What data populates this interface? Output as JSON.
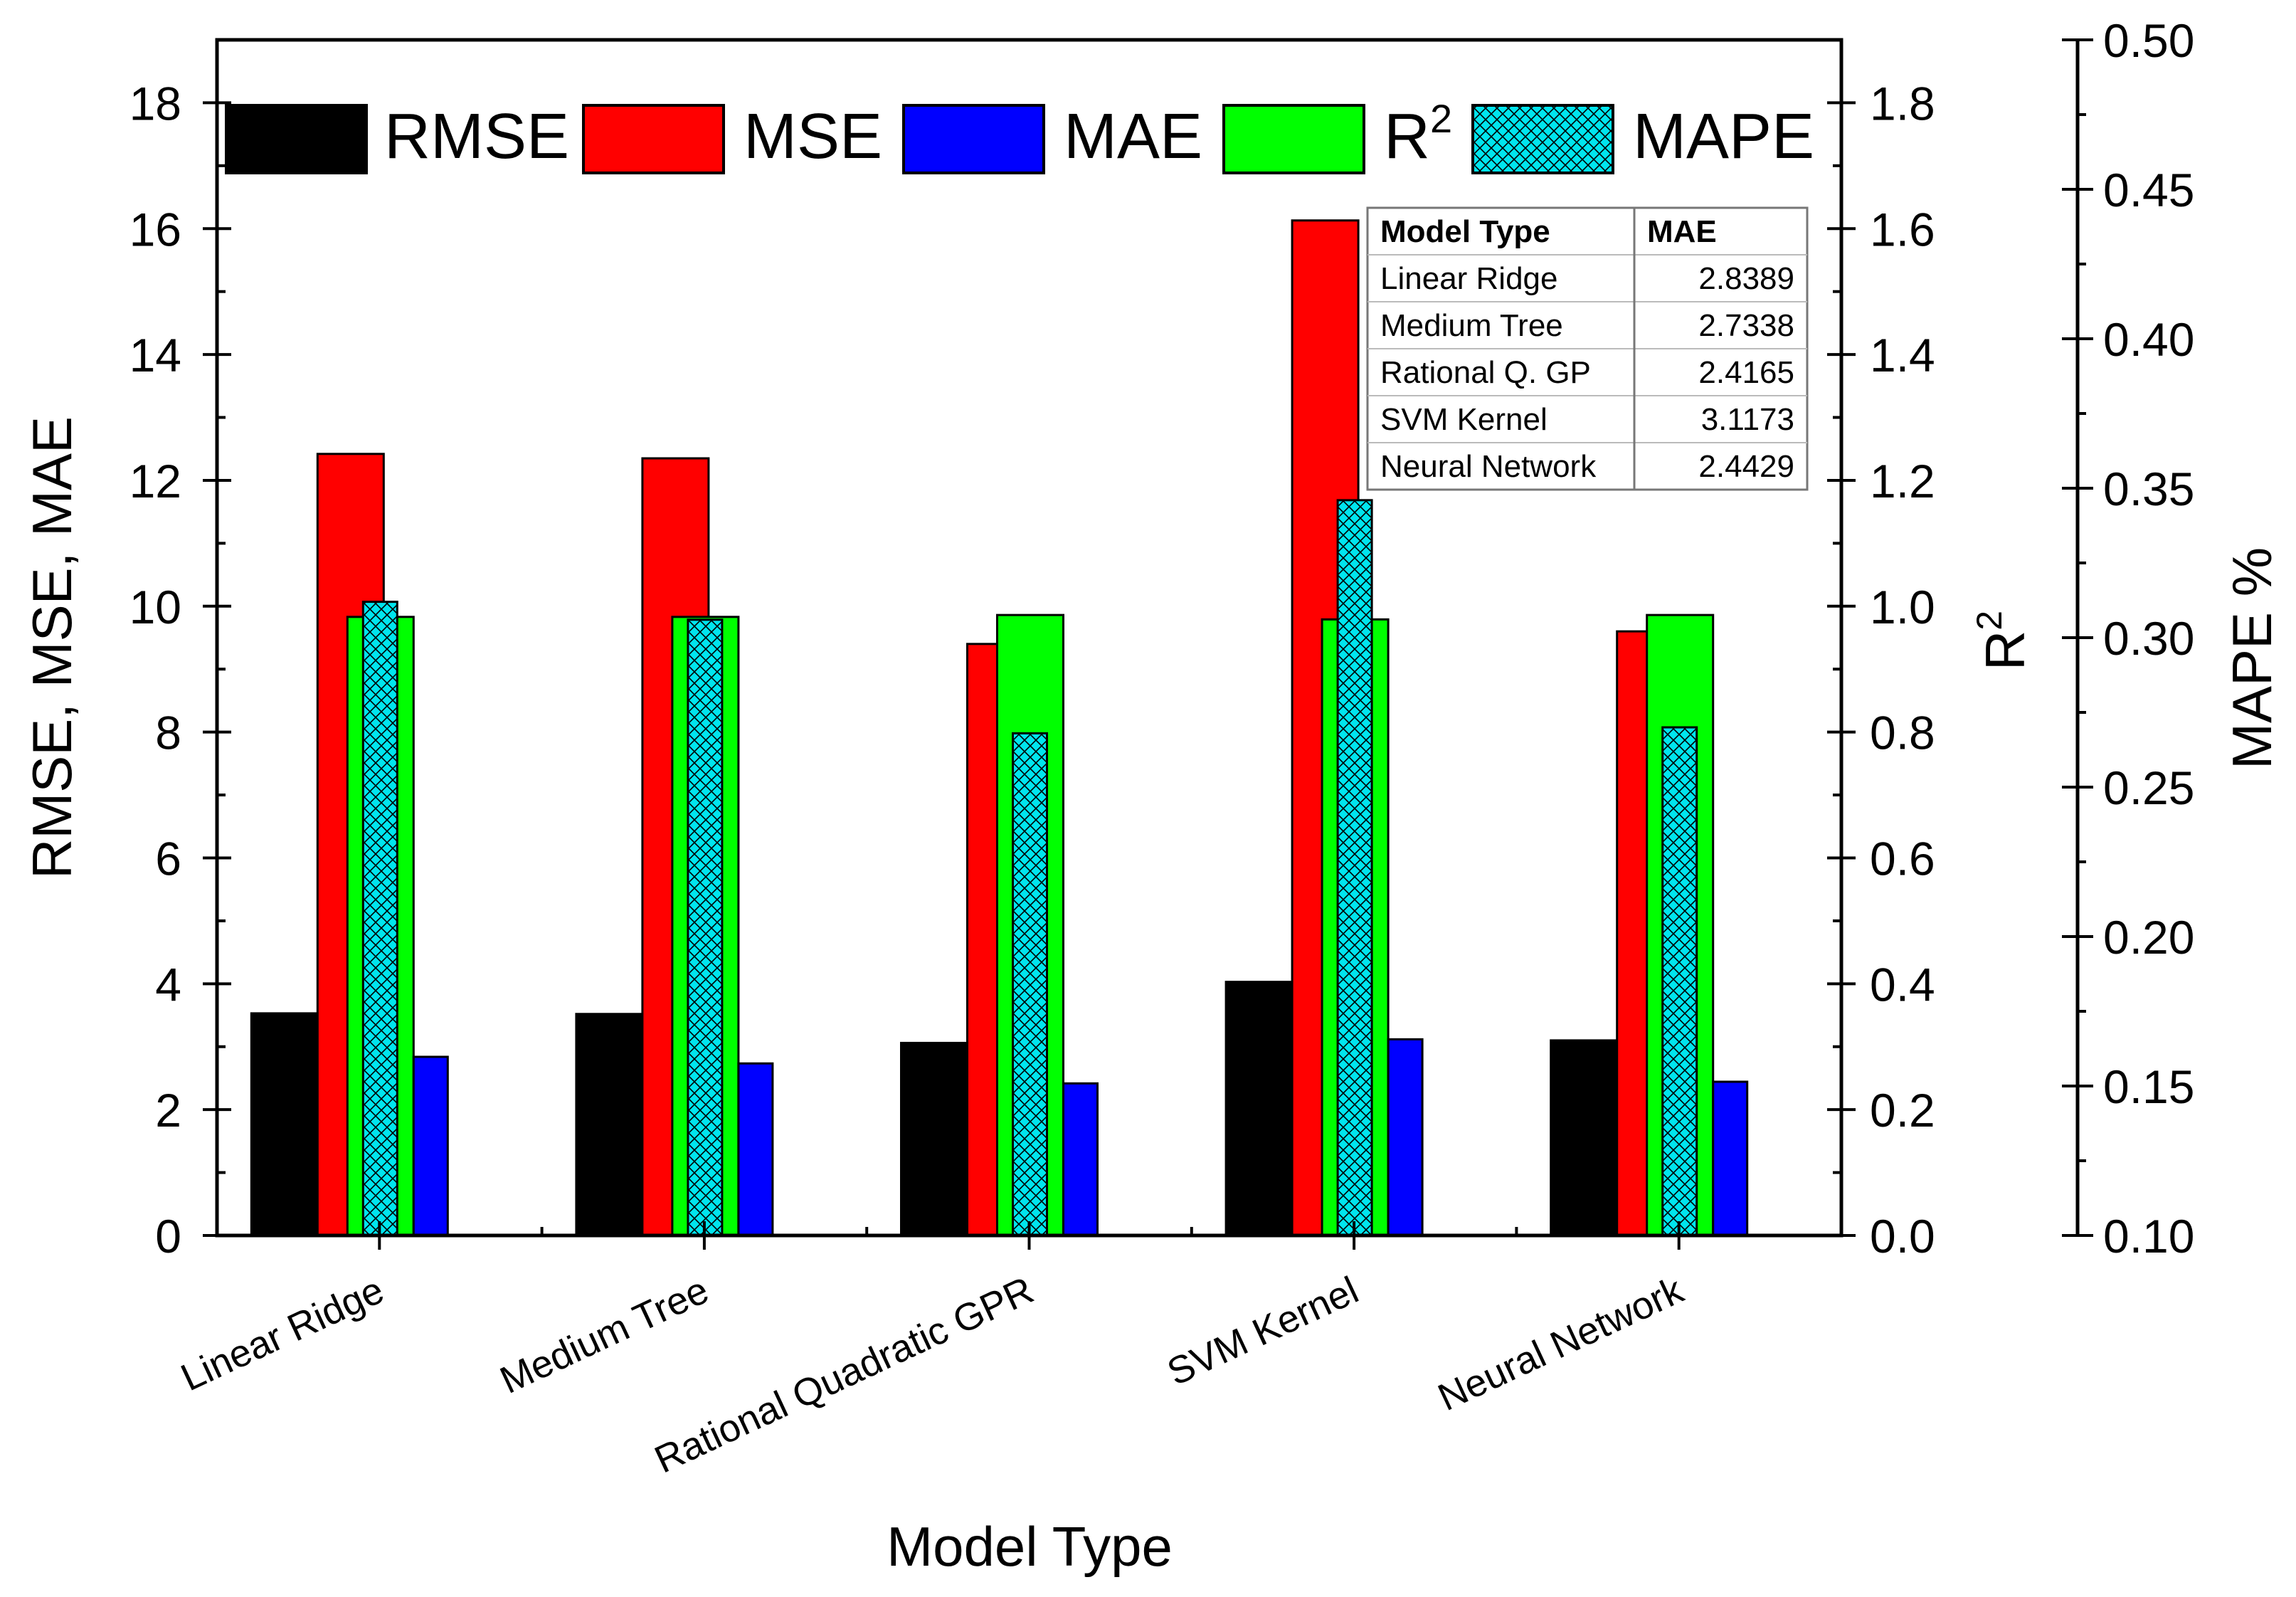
{
  "chart_data": {
    "type": "bar",
    "categories": [
      "Linear Ridge",
      "Medium Tree",
      "Rational Quadratic GPR",
      "SVM Kernel",
      "Neural Network"
    ],
    "series": [
      {
        "name": "RMSE",
        "axis": "left",
        "color": "#000000",
        "values": [
          3.53,
          3.52,
          3.06,
          4.03,
          3.1
        ]
      },
      {
        "name": "MSE",
        "axis": "left",
        "color": "#ff0000",
        "values": [
          12.42,
          12.35,
          9.4,
          16.13,
          9.6
        ]
      },
      {
        "name": "R2",
        "axis": "r2",
        "color": "#00ff00",
        "values": [
          0.983,
          0.983,
          0.986,
          0.979,
          0.986
        ]
      },
      {
        "name": "MAPE",
        "axis": "mape",
        "color": "#00e5ee",
        "hatch": true,
        "values": [
          0.312,
          0.306,
          0.268,
          0.346,
          0.27
        ]
      },
      {
        "name": "MAE",
        "axis": "left",
        "color": "#0000ff",
        "values": [
          2.8389,
          2.7338,
          2.4165,
          3.1173,
          2.4429
        ]
      }
    ],
    "legend": [
      {
        "label": "RMSE",
        "sup": "",
        "color": "#000000",
        "hatch": false
      },
      {
        "label": "MSE",
        "sup": "",
        "color": "#ff0000",
        "hatch": false
      },
      {
        "label": "MAE",
        "sup": "",
        "color": "#0000ff",
        "hatch": false
      },
      {
        "label": "R",
        "sup": "2",
        "color": "#00ff00",
        "hatch": false
      },
      {
        "label": "MAPE",
        "sup": "",
        "color": "#00e5ee",
        "hatch": true
      }
    ],
    "legend_position": "top",
    "xlabel": "Model Type",
    "ylabel_left": "RMSE, MSE, MAE",
    "ylabel_r2": "R",
    "ylabel_r2_sup": "2",
    "ylabel_mape": "MAPE %",
    "ylim_left": [
      0,
      19
    ],
    "ylim_r2": [
      0,
      1.9
    ],
    "ylim_mape": [
      0.1,
      0.5
    ],
    "yticks_left": [
      "0",
      "2",
      "4",
      "6",
      "8",
      "10",
      "12",
      "14",
      "16",
      "18"
    ],
    "yticks_r2": [
      "0.0",
      "0.2",
      "0.4",
      "0.6",
      "0.8",
      "1.0",
      "1.2",
      "1.4",
      "1.6",
      "1.8"
    ],
    "yticks_mape": [
      "0.10",
      "0.15",
      "0.20",
      "0.25",
      "0.30",
      "0.35",
      "0.40",
      "0.45",
      "0.50"
    ],
    "table": {
      "headers": [
        "Model Type",
        "MAE"
      ],
      "rows": [
        [
          "Linear Ridge",
          "2.8389"
        ],
        [
          "Medium Tree",
          "2.7338"
        ],
        [
          "Rational Q. GP",
          "2.4165"
        ],
        [
          "SVM Kernel",
          "3.1173"
        ],
        [
          "Neural Network",
          "2.4429"
        ]
      ]
    }
  }
}
